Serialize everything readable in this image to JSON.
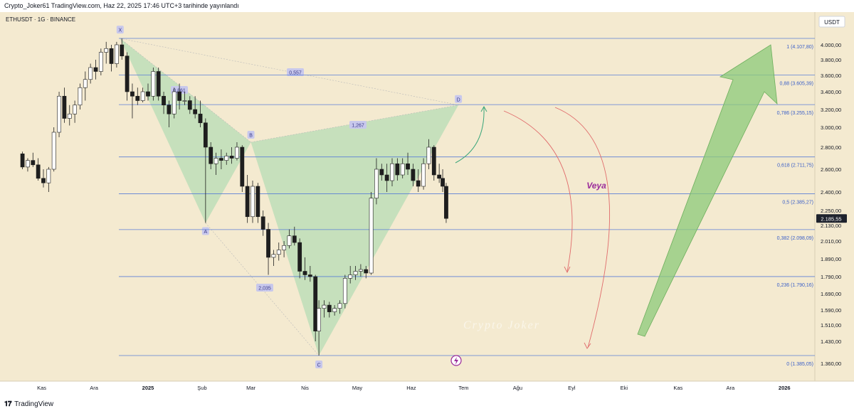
{
  "header": {
    "text": "Crypto_Joker61 TradingView.com, Haz 22, 2025 17:46 UTC+3 tarihinde yayınlandı"
  },
  "footer": {
    "brand": "TradingView",
    "logo_glyph": "𝟏𝟕"
  },
  "symbol_label": "ETHUSDT · 1G · BINANCE",
  "currency_button": "USDT",
  "watermark": "Crypto Joker",
  "annotation_text": "Veya",
  "colors": {
    "background": "#f4ead0",
    "fib_line": "#5b7fd6",
    "fib_label": "#3a5fc8",
    "pattern_fill": "#b7dcb6",
    "up_candle": "#ffffff",
    "candle_outline": "#1e1e1e",
    "arrow_green": "#8cc97a",
    "curve_red": "#e06b6b",
    "curve_teal": "#3aa67a",
    "veya_color": "#9b2c9b",
    "price_tag_bg": "#1e222d"
  },
  "chart_data": {
    "type": "candlestick",
    "symbol": "ETHUSDT",
    "interval": "1G",
    "exchange": "BINANCE",
    "x_ticks": [
      "Kas",
      "Ara",
      "2025",
      "Şub",
      "Mar",
      "Nis",
      "May",
      "Haz",
      "Tem",
      "Ağu",
      "Eyl",
      "Eki",
      "Kas",
      "Ara",
      "2026"
    ],
    "y_ticks": [
      "4.000,00",
      "3.800,00",
      "3.600,00",
      "3.400,00",
      "3.200,00",
      "3.000,00",
      "2.800,00",
      "2.600,00",
      "2.400,00",
      "2.250,00",
      "2.130,00",
      "2.010,00",
      "1.890,00",
      "1.790,00",
      "1.690,00",
      "1.590,00",
      "1.510,00",
      "1.430,00",
      "1.360,00"
    ],
    "current_price": "2.185,55",
    "fib_levels": [
      {
        "ratio": "1",
        "price": "4.107,80"
      },
      {
        "ratio": "0,88",
        "price": "3.605,39"
      },
      {
        "ratio": "0,786",
        "price": "3.255,15"
      },
      {
        "ratio": "0,618",
        "price": "2.711,75"
      },
      {
        "ratio": "0,5",
        "price": "2.385,27"
      },
      {
        "ratio": "0,382",
        "price": "2.098,09"
      },
      {
        "ratio": "0,236",
        "price": "1.790,16"
      },
      {
        "ratio": "0",
        "price": "1.385,05"
      }
    ],
    "pattern_points": [
      {
        "label": "X",
        "date": "2024-12-16",
        "price": 4107
      },
      {
        "label": "A",
        "date": "2025-02-03",
        "price": 2150
      },
      {
        "label": "B",
        "date": "2025-03-01",
        "price": 2850
      },
      {
        "label": "C",
        "date": "2025-04-09",
        "price": 1385
      },
      {
        "label": "D",
        "date": "2025-06-28",
        "price": 3250
      }
    ],
    "pattern_ratios": [
      "0,557",
      "0,861",
      "1,267",
      "2,035"
    ],
    "candles": [
      {
        "d": "2024-10-21",
        "o": 2740,
        "h": 2760,
        "l": 2600,
        "c": 2620
      },
      {
        "d": "2024-10-24",
        "o": 2620,
        "h": 2700,
        "l": 2580,
        "c": 2680
      },
      {
        "d": "2024-10-27",
        "o": 2680,
        "h": 2750,
        "l": 2620,
        "c": 2640
      },
      {
        "d": "2024-10-30",
        "o": 2640,
        "h": 2700,
        "l": 2500,
        "c": 2520
      },
      {
        "d": "2024-11-02",
        "o": 2520,
        "h": 2600,
        "l": 2440,
        "c": 2480
      },
      {
        "d": "2024-11-05",
        "o": 2480,
        "h": 2620,
        "l": 2400,
        "c": 2600
      },
      {
        "d": "2024-11-08",
        "o": 2600,
        "h": 3000,
        "l": 2580,
        "c": 2950
      },
      {
        "d": "2024-11-11",
        "o": 2950,
        "h": 3400,
        "l": 2900,
        "c": 3350
      },
      {
        "d": "2024-11-14",
        "o": 3350,
        "h": 3450,
        "l": 3050,
        "c": 3100
      },
      {
        "d": "2024-11-17",
        "o": 3100,
        "h": 3250,
        "l": 3020,
        "c": 3150
      },
      {
        "d": "2024-11-20",
        "o": 3150,
        "h": 3300,
        "l": 3050,
        "c": 3250
      },
      {
        "d": "2024-11-23",
        "o": 3250,
        "h": 3500,
        "l": 3200,
        "c": 3450
      },
      {
        "d": "2024-11-26",
        "o": 3450,
        "h": 3650,
        "l": 3300,
        "c": 3550
      },
      {
        "d": "2024-11-29",
        "o": 3550,
        "h": 3750,
        "l": 3500,
        "c": 3700
      },
      {
        "d": "2024-12-02",
        "o": 3700,
        "h": 3800,
        "l": 3550,
        "c": 3650
      },
      {
        "d": "2024-12-05",
        "o": 3650,
        "h": 3950,
        "l": 3600,
        "c": 3900
      },
      {
        "d": "2024-12-08",
        "o": 3900,
        "h": 4050,
        "l": 3750,
        "c": 3950
      },
      {
        "d": "2024-12-11",
        "o": 3950,
        "h": 4000,
        "l": 3650,
        "c": 3750
      },
      {
        "d": "2024-12-14",
        "o": 3750,
        "h": 4050,
        "l": 3700,
        "c": 4000
      },
      {
        "d": "2024-12-17",
        "o": 4000,
        "h": 4107,
        "l": 3800,
        "c": 3850
      },
      {
        "d": "2024-12-20",
        "o": 3850,
        "h": 3900,
        "l": 3300,
        "c": 3400
      },
      {
        "d": "2024-12-23",
        "o": 3400,
        "h": 3500,
        "l": 3100,
        "c": 3350
      },
      {
        "d": "2024-12-26",
        "o": 3350,
        "h": 3450,
        "l": 3250,
        "c": 3300
      },
      {
        "d": "2024-12-29",
        "o": 3300,
        "h": 3450,
        "l": 3280,
        "c": 3400
      },
      {
        "d": "2025-01-01",
        "o": 3400,
        "h": 3500,
        "l": 3300,
        "c": 3350
      },
      {
        "d": "2025-01-04",
        "o": 3350,
        "h": 3700,
        "l": 3300,
        "c": 3650
      },
      {
        "d": "2025-01-07",
        "o": 3650,
        "h": 3700,
        "l": 3300,
        "c": 3350
      },
      {
        "d": "2025-01-10",
        "o": 3350,
        "h": 3400,
        "l": 3150,
        "c": 3250
      },
      {
        "d": "2025-01-13",
        "o": 3250,
        "h": 3300,
        "l": 3000,
        "c": 3150
      },
      {
        "d": "2025-01-16",
        "o": 3150,
        "h": 3450,
        "l": 3100,
        "c": 3400
      },
      {
        "d": "2025-01-19",
        "o": 3400,
        "h": 3500,
        "l": 3200,
        "c": 3300
      },
      {
        "d": "2025-01-22",
        "o": 3300,
        "h": 3400,
        "l": 3250,
        "c": 3300
      },
      {
        "d": "2025-01-25",
        "o": 3300,
        "h": 3350,
        "l": 3150,
        "c": 3200
      },
      {
        "d": "2025-01-28",
        "o": 3200,
        "h": 3350,
        "l": 3100,
        "c": 3150
      },
      {
        "d": "2025-01-31",
        "o": 3150,
        "h": 3300,
        "l": 3000,
        "c": 3050
      },
      {
        "d": "2025-02-03",
        "o": 3050,
        "h": 3100,
        "l": 2150,
        "c": 2800
      },
      {
        "d": "2025-02-06",
        "o": 2800,
        "h": 2850,
        "l": 2600,
        "c": 2650
      },
      {
        "d": "2025-02-09",
        "o": 2650,
        "h": 2750,
        "l": 2550,
        "c": 2700
      },
      {
        "d": "2025-02-12",
        "o": 2700,
        "h": 2780,
        "l": 2600,
        "c": 2680
      },
      {
        "d": "2025-02-15",
        "o": 2680,
        "h": 2750,
        "l": 2640,
        "c": 2720
      },
      {
        "d": "2025-02-18",
        "o": 2720,
        "h": 2800,
        "l": 2650,
        "c": 2700
      },
      {
        "d": "2025-02-21",
        "o": 2700,
        "h": 2850,
        "l": 2680,
        "c": 2800
      },
      {
        "d": "2025-02-24",
        "o": 2800,
        "h": 2820,
        "l": 2400,
        "c": 2450
      },
      {
        "d": "2025-02-27",
        "o": 2450,
        "h": 2550,
        "l": 2150,
        "c": 2200
      },
      {
        "d": "2025-03-02",
        "o": 2200,
        "h": 2500,
        "l": 2150,
        "c": 2450
      },
      {
        "d": "2025-03-05",
        "o": 2450,
        "h": 2480,
        "l": 2150,
        "c": 2200
      },
      {
        "d": "2025-03-08",
        "o": 2200,
        "h": 2250,
        "l": 2050,
        "c": 2100
      },
      {
        "d": "2025-03-11",
        "o": 2100,
        "h": 2150,
        "l": 1800,
        "c": 1900
      },
      {
        "d": "2025-03-14",
        "o": 1900,
        "h": 1950,
        "l": 1850,
        "c": 1920
      },
      {
        "d": "2025-03-17",
        "o": 1920,
        "h": 2000,
        "l": 1880,
        "c": 1950
      },
      {
        "d": "2025-03-20",
        "o": 1950,
        "h": 2010,
        "l": 1900,
        "c": 1980
      },
      {
        "d": "2025-03-23",
        "o": 1980,
        "h": 2100,
        "l": 1960,
        "c": 2050
      },
      {
        "d": "2025-03-26",
        "o": 2050,
        "h": 2120,
        "l": 1980,
        "c": 2000
      },
      {
        "d": "2025-03-29",
        "o": 2000,
        "h": 2030,
        "l": 1780,
        "c": 1820
      },
      {
        "d": "2025-04-01",
        "o": 1820,
        "h": 1900,
        "l": 1770,
        "c": 1800
      },
      {
        "d": "2025-04-04",
        "o": 1800,
        "h": 1850,
        "l": 1760,
        "c": 1790
      },
      {
        "d": "2025-04-07",
        "o": 1790,
        "h": 1800,
        "l": 1430,
        "c": 1480
      },
      {
        "d": "2025-04-09",
        "o": 1480,
        "h": 1650,
        "l": 1385,
        "c": 1600
      },
      {
        "d": "2025-04-12",
        "o": 1600,
        "h": 1650,
        "l": 1550,
        "c": 1620
      },
      {
        "d": "2025-04-15",
        "o": 1620,
        "h": 1640,
        "l": 1550,
        "c": 1580
      },
      {
        "d": "2025-04-18",
        "o": 1580,
        "h": 1620,
        "l": 1560,
        "c": 1600
      },
      {
        "d": "2025-04-21",
        "o": 1600,
        "h": 1650,
        "l": 1570,
        "c": 1630
      },
      {
        "d": "2025-04-24",
        "o": 1630,
        "h": 1800,
        "l": 1600,
        "c": 1780
      },
      {
        "d": "2025-04-27",
        "o": 1780,
        "h": 1850,
        "l": 1750,
        "c": 1800
      },
      {
        "d": "2025-04-30",
        "o": 1800,
        "h": 1850,
        "l": 1770,
        "c": 1820
      },
      {
        "d": "2025-05-03",
        "o": 1820,
        "h": 1860,
        "l": 1790,
        "c": 1830
      },
      {
        "d": "2025-05-06",
        "o": 1830,
        "h": 1850,
        "l": 1780,
        "c": 1810
      },
      {
        "d": "2025-05-09",
        "o": 1810,
        "h": 2400,
        "l": 1800,
        "c": 2350
      },
      {
        "d": "2025-05-12",
        "o": 2350,
        "h": 2700,
        "l": 2300,
        "c": 2600
      },
      {
        "d": "2025-05-15",
        "o": 2600,
        "h": 2650,
        "l": 2500,
        "c": 2550
      },
      {
        "d": "2025-05-18",
        "o": 2550,
        "h": 2650,
        "l": 2400,
        "c": 2500
      },
      {
        "d": "2025-05-21",
        "o": 2500,
        "h": 2700,
        "l": 2450,
        "c": 2650
      },
      {
        "d": "2025-05-24",
        "o": 2650,
        "h": 2700,
        "l": 2500,
        "c": 2550
      },
      {
        "d": "2025-05-27",
        "o": 2550,
        "h": 2700,
        "l": 2520,
        "c": 2650
      },
      {
        "d": "2025-05-30",
        "o": 2650,
        "h": 2750,
        "l": 2550,
        "c": 2600
      },
      {
        "d": "2025-06-02",
        "o": 2600,
        "h": 2650,
        "l": 2450,
        "c": 2500
      },
      {
        "d": "2025-06-05",
        "o": 2500,
        "h": 2600,
        "l": 2400,
        "c": 2450
      },
      {
        "d": "2025-06-08",
        "o": 2450,
        "h": 2700,
        "l": 2420,
        "c": 2650
      },
      {
        "d": "2025-06-11",
        "o": 2650,
        "h": 2880,
        "l": 2600,
        "c": 2800
      },
      {
        "d": "2025-06-14",
        "o": 2800,
        "h": 2820,
        "l": 2500,
        "c": 2550
      },
      {
        "d": "2025-06-17",
        "o": 2550,
        "h": 2650,
        "l": 2480,
        "c": 2520
      },
      {
        "d": "2025-06-19",
        "o": 2520,
        "h": 2600,
        "l": 2400,
        "c": 2450
      },
      {
        "d": "2025-06-21",
        "o": 2450,
        "h": 2480,
        "l": 2150,
        "c": 2186
      }
    ]
  }
}
